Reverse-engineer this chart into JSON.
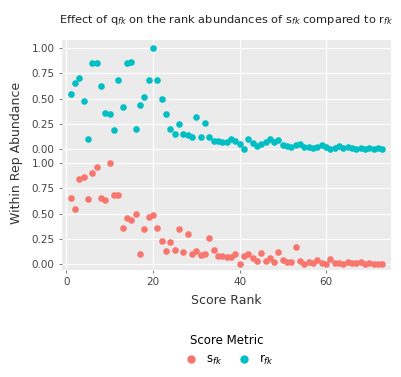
{
  "title": "Effect of q$_{fk}$ on the rank abundances of s$_{fk}$ compared to r$_{fk}$",
  "xlabel": "Score Rank",
  "ylabel": "Within Rep Abundance",
  "color_rfk": "#00BFC4",
  "color_sfk": "#F8766D",
  "bg_color": "#EBEBEB",
  "grid_color": "white",
  "rfk_x": [
    1,
    2,
    3,
    4,
    5,
    6,
    7,
    8,
    9,
    10,
    11,
    12,
    13,
    14,
    15,
    16,
    17,
    18,
    19,
    20,
    21,
    22,
    23,
    24,
    25,
    26,
    27,
    28,
    29,
    30,
    31,
    32,
    33,
    34,
    35,
    36,
    37,
    38,
    39,
    40,
    41,
    42,
    43,
    44,
    45,
    46,
    47,
    48,
    49,
    50,
    51,
    52,
    53,
    54,
    55,
    56,
    57,
    58,
    59,
    60,
    61,
    62,
    63,
    64,
    65,
    66,
    67,
    68,
    69,
    70,
    71,
    72,
    73
  ],
  "rfk_y": [
    0.55,
    0.65,
    0.7,
    0.48,
    0.1,
    0.85,
    0.85,
    0.62,
    0.36,
    0.35,
    0.19,
    0.68,
    0.42,
    0.85,
    0.86,
    0.2,
    0.44,
    0.52,
    0.68,
    1.0,
    0.68,
    0.5,
    0.35,
    0.2,
    0.15,
    0.25,
    0.15,
    0.14,
    0.12,
    0.32,
    0.12,
    0.26,
    0.12,
    0.08,
    0.08,
    0.07,
    0.07,
    0.1,
    0.08,
    0.05,
    0.0,
    0.1,
    0.06,
    0.03,
    0.05,
    0.07,
    0.1,
    0.07,
    0.09,
    0.04,
    0.03,
    0.02,
    0.04,
    0.05,
    0.02,
    0.02,
    0.01,
    0.02,
    0.04,
    0.02,
    0.0,
    0.01,
    0.03,
    0.01,
    0.02,
    0.01,
    0.0,
    0.01,
    0.0,
    0.01,
    0.0,
    0.01,
    0.0
  ],
  "sfk_x": [
    1,
    2,
    3,
    4,
    5,
    6,
    7,
    8,
    9,
    10,
    11,
    12,
    13,
    14,
    15,
    16,
    17,
    18,
    19,
    20,
    21,
    22,
    23,
    24,
    25,
    26,
    27,
    28,
    29,
    30,
    31,
    32,
    33,
    34,
    35,
    36,
    37,
    38,
    39,
    40,
    41,
    42,
    43,
    44,
    45,
    46,
    47,
    48,
    49,
    50,
    51,
    52,
    53,
    54,
    55,
    56,
    57,
    58,
    59,
    60,
    61,
    62,
    63,
    64,
    65,
    66,
    67,
    68,
    69,
    70,
    71,
    72,
    73
  ],
  "sfk_y": [
    0.65,
    0.55,
    0.84,
    0.86,
    0.64,
    0.9,
    0.96,
    0.65,
    0.63,
    1.0,
    0.68,
    0.68,
    0.36,
    0.46,
    0.44,
    0.5,
    0.1,
    0.35,
    0.47,
    0.49,
    0.36,
    0.23,
    0.13,
    0.22,
    0.14,
    0.35,
    0.12,
    0.3,
    0.1,
    0.13,
    0.09,
    0.1,
    0.26,
    0.14,
    0.08,
    0.08,
    0.07,
    0.07,
    0.1,
    0.0,
    0.08,
    0.1,
    0.06,
    0.03,
    0.11,
    0.03,
    0.06,
    0.02,
    0.12,
    0.04,
    0.02,
    0.02,
    0.17,
    0.03,
    0.0,
    0.02,
    0.01,
    0.04,
    0.01,
    0.0,
    0.05,
    0.01,
    0.01,
    0.0,
    0.02,
    0.01,
    0.01,
    0.02,
    0.0,
    0.01,
    0.0,
    0.0,
    0.0
  ],
  "xticks": [
    0,
    20,
    40,
    60
  ],
  "yticks": [
    0.0,
    0.25,
    0.5,
    0.75,
    1.0
  ],
  "xlim": [
    -1,
    75
  ],
  "ylim": [
    -0.05,
    1.08
  ],
  "marker_size": 14,
  "legend_title": "Score Metric",
  "legend_sfk": "s$_{fk}$",
  "legend_rfk": "r$_{fk}$"
}
